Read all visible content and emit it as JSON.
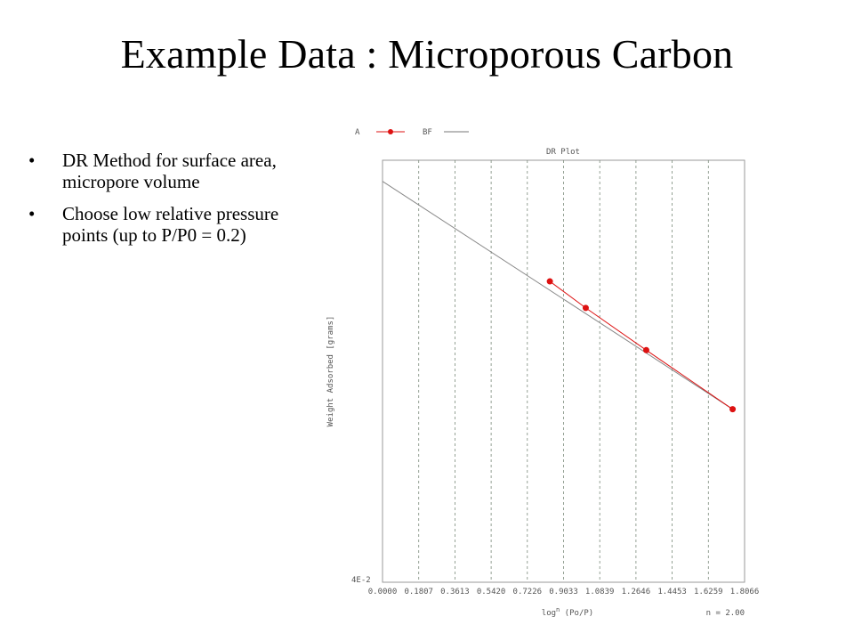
{
  "slide": {
    "title": "Example Data : Microporous Carbon",
    "bullets": [
      "DR Method for surface area, micropore volume",
      "Choose low relative pressure points (up to P/P0 = 0.2)"
    ]
  },
  "chart_data": {
    "type": "scatter",
    "title": "DR Plot",
    "xlabel": "log^n (Po/P)",
    "xlabel_superscript": "n",
    "xlabel_base": "log",
    "xlabel_rest": " (Po/P)",
    "ylabel": "Weight Adsorbed [grams]",
    "y_min_label": "4E-2",
    "n_label": "n = 2.00",
    "xlim": [
      0.0,
      1.8066
    ],
    "x_ticks": [
      0.0,
      0.1807,
      0.3613,
      0.542,
      0.7226,
      0.9033,
      1.0839,
      1.2646,
      1.4453,
      1.6259,
      1.8066
    ],
    "x_tick_labels": [
      "0.0000",
      "0.1807",
      "0.3613",
      "0.5420",
      "0.7226",
      "0.9033",
      "1.0839",
      "1.2646",
      "1.4453",
      "1.6259",
      "1.8066"
    ],
    "grid": "vertical dashed",
    "legend": [
      {
        "name": "A",
        "color": "#dd1111",
        "style": "marker-line"
      },
      {
        "name": "BF",
        "color": "#777777",
        "style": "line"
      }
    ],
    "series": [
      {
        "name": "A",
        "color": "#dd1111",
        "points": [
          {
            "x": 0.835,
            "y": 0.713
          },
          {
            "x": 1.014,
            "y": 0.65
          },
          {
            "x": 1.316,
            "y": 0.55
          },
          {
            "x": 1.747,
            "y": 0.41
          }
        ]
      },
      {
        "name": "BF",
        "color": "#888888",
        "line": {
          "x0": 0.0,
          "y0": 0.95,
          "x1": 1.747,
          "y1": 0.41
        }
      }
    ],
    "ylim_frac": [
      0,
      1
    ]
  }
}
